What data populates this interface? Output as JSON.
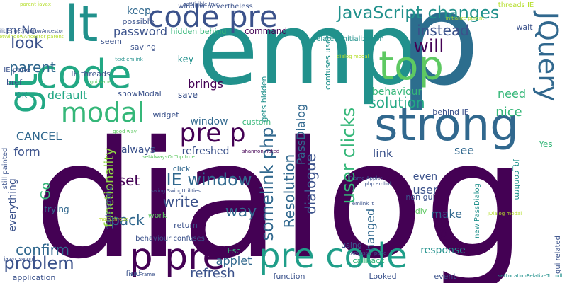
{
  "words": [
    {
      "text": "dialog",
      "color": "#440154"
    },
    {
      "text": "emp",
      "color": "#21918c"
    },
    {
      "text": "p",
      "color": "#2c6e8e"
    },
    {
      "text": "code",
      "color": "#22a884"
    },
    {
      "text": "strong",
      "color": "#31688e"
    },
    {
      "text": "lt",
      "color": "#21918c"
    },
    {
      "text": "gt",
      "color": "#22a884"
    },
    {
      "text": "code pre",
      "color": "#3b528b"
    },
    {
      "text": "pre p",
      "color": "#440154"
    },
    {
      "text": "p pre",
      "color": "#440154"
    },
    {
      "text": "pre code",
      "color": "#1f9e89"
    },
    {
      "text": "top",
      "color": "#5ec962"
    },
    {
      "text": "JQuery",
      "color": "#31688e"
    },
    {
      "text": "modal",
      "color": "#35b779"
    },
    {
      "text": "JavaScript changes",
      "color": "#21918c"
    },
    {
      "text": "IE window",
      "color": "#31688e"
    },
    {
      "text": "solution",
      "color": "#22a884"
    },
    {
      "text": "instead",
      "color": "#3b528b"
    },
    {
      "text": "will",
      "color": "#440154"
    },
    {
      "text": "look",
      "color": "#3b528b"
    },
    {
      "text": "parent",
      "color": "#31688e"
    },
    {
      "text": "functionality",
      "color": "#90d743"
    },
    {
      "text": "somelink php",
      "color": "#31688e"
    },
    {
      "text": "Resolution",
      "color": "#31688e"
    },
    {
      "text": "PassDialog",
      "color": "#31688e"
    },
    {
      "text": "dialogue",
      "color": "#3b528b"
    },
    {
      "text": "user clicks",
      "color": "#35b779"
    },
    {
      "text": "problem",
      "color": "#3b528b"
    },
    {
      "text": "confirm",
      "color": "#31688e"
    },
    {
      "text": "refresh",
      "color": "#3b528b"
    },
    {
      "text": "applet",
      "color": "#31688e"
    },
    {
      "text": "way",
      "color": "#31688e"
    },
    {
      "text": "write",
      "color": "#3b528b"
    },
    {
      "text": "pack",
      "color": "#31688e"
    },
    {
      "text": "set",
      "color": "#440154"
    },
    {
      "text": "form",
      "color": "#3b528b"
    },
    {
      "text": "CANCEL",
      "color": "#31688e"
    },
    {
      "text": "default",
      "color": "#22a884"
    },
    {
      "text": "password",
      "color": "#3b528b"
    },
    {
      "text": "keep",
      "color": "#31688e"
    },
    {
      "text": "mrNo",
      "color": "#3b528b"
    },
    {
      "text": "brings",
      "color": "#440154"
    },
    {
      "text": "window",
      "color": "#31688e"
    },
    {
      "text": "refreshed",
      "color": "#3b528b"
    },
    {
      "text": "always",
      "color": "#3b528b"
    },
    {
      "text": "link",
      "color": "#3b528b"
    },
    {
      "text": "see",
      "color": "#31688e"
    },
    {
      "text": "nice",
      "color": "#35b779"
    },
    {
      "text": "need",
      "color": "#35b779"
    },
    {
      "text": "behaviour",
      "color": "#35b779"
    },
    {
      "text": "make",
      "color": "#31688e"
    },
    {
      "text": "response",
      "color": "#21918c"
    },
    {
      "text": "user",
      "color": "#3b528b"
    },
    {
      "text": "even",
      "color": "#3b528b"
    },
    {
      "text": "hanged",
      "color": "#31688e"
    },
    {
      "text": "refreshe",
      "color": "#440154"
    },
    {
      "text": "everything",
      "color": "#3b528b"
    },
    {
      "text": "Go",
      "color": "#35b779"
    },
    {
      "text": "trying",
      "color": "#31688e"
    },
    {
      "text": "command",
      "color": "#440154"
    },
    {
      "text": "wait",
      "color": "#3b528b"
    },
    {
      "text": "saving",
      "color": "#3b528b"
    },
    {
      "text": "seem",
      "color": "#3b528b"
    },
    {
      "text": "possible",
      "color": "#3b528b"
    },
    {
      "text": "hidden behind",
      "color": "#35b779"
    },
    {
      "text": "key",
      "color": "#21918c"
    },
    {
      "text": "save",
      "color": "#3b528b"
    },
    {
      "text": "showModal",
      "color": "#3b528b"
    },
    {
      "text": "custom",
      "color": "#35b779"
    },
    {
      "text": "widget",
      "color": "#3b528b"
    },
    {
      "text": "click",
      "color": "#31688e"
    },
    {
      "text": "work",
      "color": "#5ec962"
    },
    {
      "text": "return",
      "color": "#3b528b"
    },
    {
      "text": "Esc",
      "color": "#35b779"
    },
    {
      "text": "find",
      "color": "#3b528b"
    },
    {
      "text": "callback",
      "color": "#35b779"
    },
    {
      "text": "function",
      "color": "#3b528b"
    },
    {
      "text": "Looked",
      "color": "#3b528b"
    },
    {
      "text": "event",
      "color": "#3b528b"
    },
    {
      "text": "using",
      "color": "#3b528b"
    },
    {
      "text": "div",
      "color": "#5ec962"
    },
    {
      "text": "non gui",
      "color": "#3b528b"
    },
    {
      "text": "application",
      "color": "#3b528b"
    },
    {
      "text": "bref",
      "color": "#3b528b"
    },
    {
      "text": "IE pane",
      "color": "#3b528b"
    },
    {
      "text": "OK",
      "color": "#21918c"
    },
    {
      "text": "IE threads",
      "color": "#3b528b"
    },
    {
      "text": "behind IE",
      "color": "#3b528b"
    },
    {
      "text": "gets hidden",
      "color": "#21918c"
    },
    {
      "text": "confuses users",
      "color": "#21918c"
    },
    {
      "text": "related initialization",
      "color": "#21918c"
    },
    {
      "text": "window nevertheless",
      "color": "#3b528b"
    },
    {
      "text": "threads IE",
      "color": "#b5de2b"
    },
    {
      "text": "Yes",
      "color": "#35b779"
    },
    {
      "text": "jq_confirm",
      "color": "#21918c"
    },
    {
      "text": "gui related",
      "color": "#3b528b"
    },
    {
      "text": "behaviour confuses",
      "color": "#3b528b"
    },
    {
      "text": "holds strong",
      "color": "#3b528b"
    },
    {
      "text": "still painted",
      "color": "#3b528b"
    },
    {
      "text": "new PassDialog",
      "color": "#21918c"
    },
    {
      "text": "parent javax",
      "color": "#b5de2b"
    },
    {
      "text": "setVisible true",
      "color": "#3b528b"
    },
    {
      "text": "initialize parent",
      "color": "#b5de2b"
    },
    {
      "text": "null Frame",
      "color": "#3b528b"
    },
    {
      "text": "javax swing",
      "color": "#3b528b"
    },
    {
      "text": "setAlwaysOnTop true",
      "color": "#5ec962"
    },
    {
      "text": "swing SwingUtilities",
      "color": "#3b528b"
    },
    {
      "text": "Frame Applet",
      "color": "#3b528b"
    },
    {
      "text": "shannon noted",
      "color": "#440154"
    },
    {
      "text": "good way",
      "color": "#5ec962"
    },
    {
      "text": "php emlink",
      "color": "#3b528b"
    },
    {
      "text": "setLocationRelativeTo null",
      "color": "#21918c"
    },
    {
      "text": "text emlink",
      "color": "#21918c"
    },
    {
      "text": "dialog modal",
      "color": "#b5de2b"
    },
    {
      "text": "getWindowAncestor parent",
      "color": "#b5de2b"
    },
    {
      "text": "SwingUtilities getWindowAncestor",
      "color": "#3b528b"
    },
    {
      "text": "Ancestor pane",
      "color": "#3b528b"
    },
    {
      "text": "gui pane",
      "color": "#5ec962"
    },
    {
      "text": "emlink lt",
      "color": "#3b528b"
    },
    {
      "text": "JDialog modal",
      "color": "#b5de2b"
    },
    {
      "text": "main thread",
      "color": "#b5de2b"
    }
  ]
}
